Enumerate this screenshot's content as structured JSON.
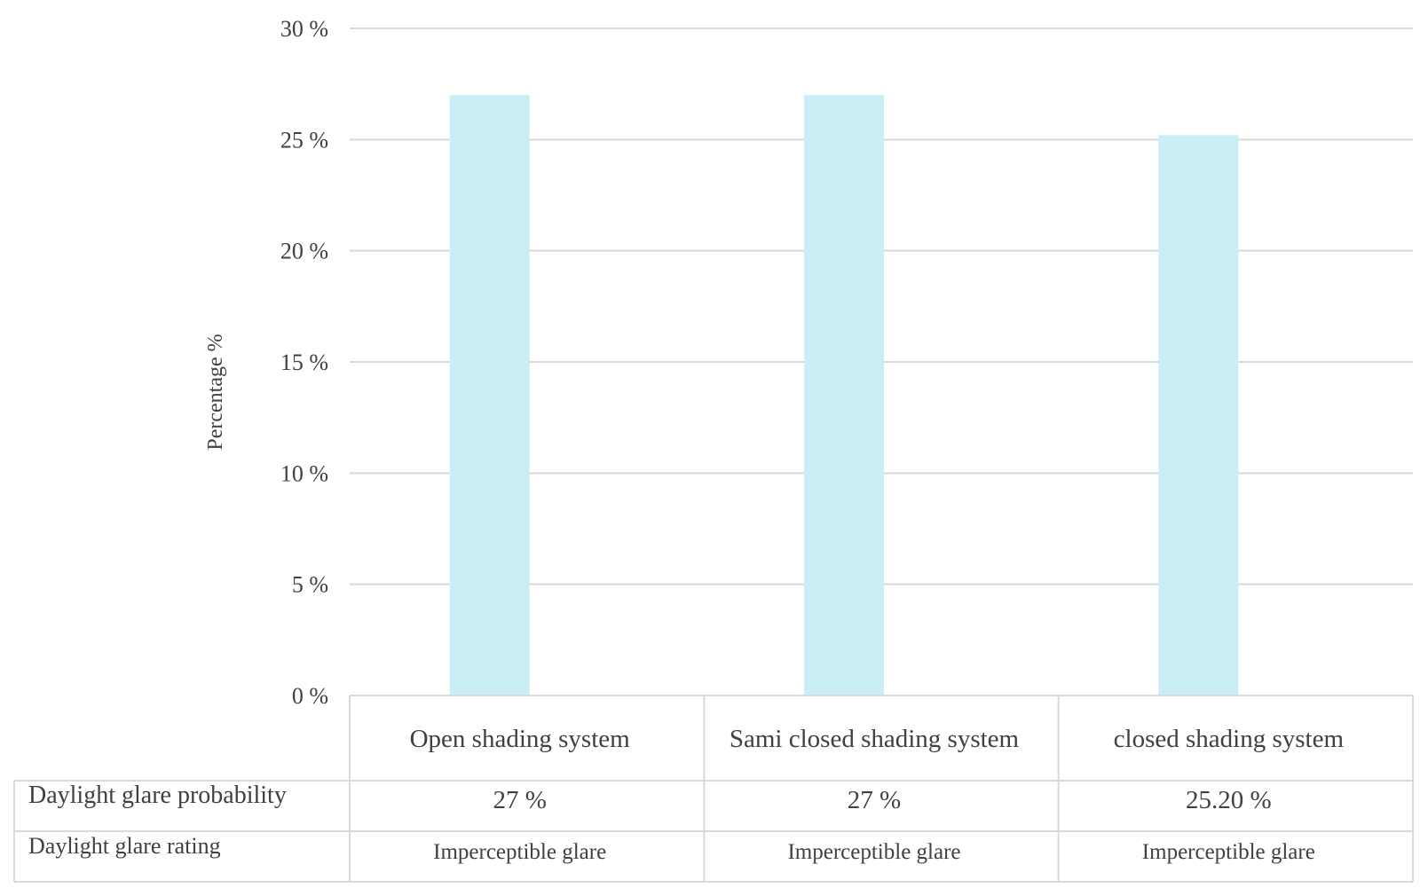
{
  "chart_data": {
    "type": "bar",
    "title": "",
    "xlabel": "",
    "ylabel": "Percentage %",
    "ylim": [
      0,
      30
    ],
    "yticks": [
      0,
      5,
      10,
      15,
      20,
      25,
      30
    ],
    "ytick_labels": [
      "0 %",
      "5 %",
      "10 %",
      "15 %",
      "20 %",
      "25 %",
      "30 %"
    ],
    "grid": true,
    "categories": [
      "Open shading system",
      "Sami closed shading system",
      "closed shading system"
    ],
    "series": [
      {
        "name": "Daylight glare probability",
        "values": [
          27,
          27,
          25.2
        ],
        "color": "#c9eef5"
      }
    ],
    "data_table": {
      "rows": [
        {
          "label": "Daylight glare probability",
          "cells": [
            "27 %",
            "27 %",
            "25.20 %"
          ]
        },
        {
          "label": "Daylight glare rating",
          "cells": [
            "Imperceptible glare",
            "Imperceptible glare",
            "Imperceptible glare"
          ]
        }
      ]
    }
  },
  "colors": {
    "bar": "#c9eef5",
    "gridline": "#d9d9d9",
    "table_border": "#d9d9d9",
    "text": "#404040"
  }
}
